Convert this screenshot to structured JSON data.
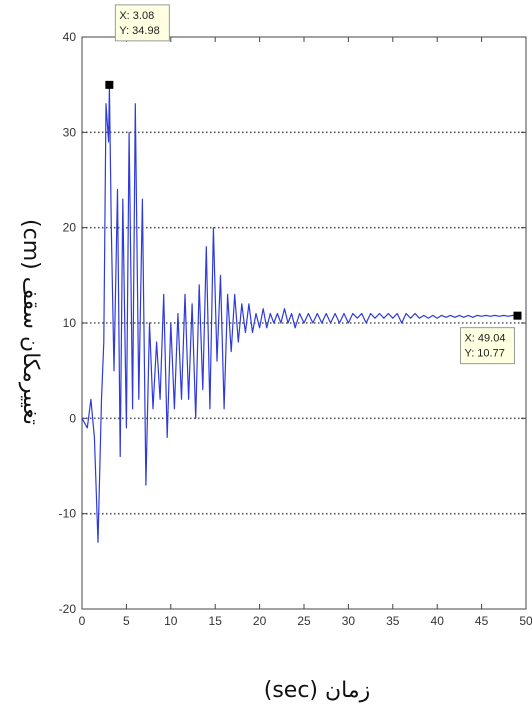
{
  "chart_data": {
    "type": "line",
    "title": "",
    "xlabel": "زمان (sec)",
    "ylabel": "تغییرمکان سقف (cm)",
    "xlim": [
      0,
      50
    ],
    "ylim": [
      -20,
      40
    ],
    "xticks": [
      0,
      5,
      10,
      15,
      20,
      25,
      30,
      35,
      40,
      45,
      50
    ],
    "yticks": [
      -20,
      -10,
      0,
      10,
      20,
      30,
      40
    ],
    "grid": "horizontal-dotted",
    "colors": {
      "line": "#2f3bd9",
      "grid": "#555555",
      "axis": "#444444",
      "marker": "#000000",
      "tooltip_bg": "#ffffe1"
    },
    "series": [
      {
        "x": [
          0,
          0.6,
          1.0,
          1.4,
          1.8,
          2.2,
          2.45,
          2.7,
          3.0,
          3.08,
          3.3,
          3.6,
          4.0,
          4.3,
          4.6,
          5.0,
          5.3,
          5.7,
          6.0,
          6.4,
          6.8,
          7.2,
          7.6,
          8.0,
          8.4,
          8.8,
          9.2,
          9.6,
          10.0,
          10.4,
          10.8,
          11.2,
          11.6,
          12.0,
          12.4,
          12.8,
          13.2,
          13.6,
          14.0,
          14.4,
          14.8,
          15.2,
          15.6,
          16.0,
          16.4,
          16.8,
          17.2,
          17.6,
          18.0,
          18.4,
          18.8,
          19.2,
          19.6,
          20.0,
          20.4,
          20.8,
          21.2,
          21.6,
          22.0,
          22.4,
          22.8,
          23.2,
          23.6,
          24.0,
          24.5,
          25.0,
          25.5,
          26.0,
          26.5,
          27.0,
          27.5,
          28.0,
          28.5,
          29.0,
          29.5,
          30.0,
          30.5,
          31.0,
          31.5,
          32.0,
          32.5,
          33.0,
          33.5,
          34.0,
          34.5,
          35.0,
          35.5,
          36.0,
          36.5,
          37.0,
          37.5,
          38.0,
          38.5,
          39.0,
          39.5,
          40.0,
          40.5,
          41.0,
          41.5,
          42.0,
          42.5,
          43.0,
          43.5,
          44.0,
          44.5,
          45.0,
          45.5,
          46.0,
          46.5,
          47.0,
          47.5,
          48.0,
          48.5,
          49.04,
          49.5
        ],
        "y": [
          0,
          -1,
          2,
          -2,
          -13,
          2,
          8,
          33,
          29,
          34.98,
          20,
          5,
          24,
          -4,
          23,
          -1,
          30,
          1,
          33,
          2,
          23,
          -7,
          10,
          1,
          8,
          2,
          13,
          -2,
          10,
          1,
          11,
          2,
          13,
          2,
          12,
          0,
          14,
          3,
          18,
          1,
          20,
          6,
          15,
          1,
          13,
          7,
          13,
          8,
          12,
          9,
          12,
          9,
          11,
          9.5,
          11.5,
          9.5,
          11,
          10,
          11,
          10,
          11.5,
          10,
          11,
          9.5,
          11,
          10,
          11,
          10,
          11,
          10,
          11,
          10,
          11,
          10,
          11,
          10,
          11,
          10.5,
          11,
          10,
          11,
          10.5,
          11,
          10.5,
          11,
          10.5,
          11,
          10,
          11,
          10.5,
          11,
          10.5,
          10.8,
          10.5,
          10.8,
          10.5,
          10.8,
          10.6,
          10.8,
          10.6,
          10.8,
          10.6,
          10.8,
          10.6,
          10.8,
          10.7,
          10.8,
          10.7,
          10.8,
          10.7,
          10.8,
          10.7,
          10.8,
          10.77,
          10.77
        ]
      }
    ],
    "annotations": [
      {
        "x": 3.08,
        "y": 34.98,
        "text_x": "X: 3.08",
        "text_y": "Y: 34.98",
        "placement": "above-left"
      },
      {
        "x": 49.04,
        "y": 10.77,
        "text_x": "X: 49.04",
        "text_y": "Y: 10.77",
        "placement": "below-left"
      }
    ]
  }
}
